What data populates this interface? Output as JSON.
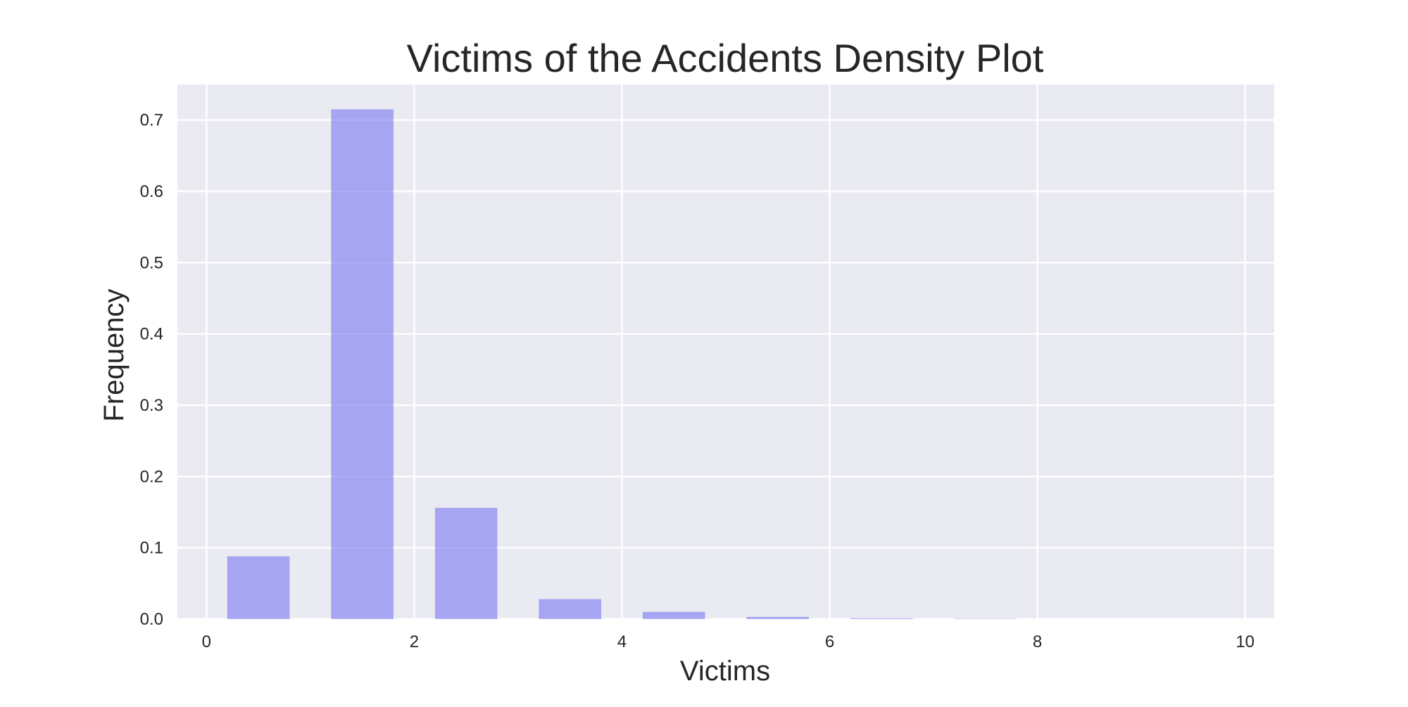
{
  "chart_data": {
    "type": "bar",
    "title": "Victims of the Accidents Density Plot",
    "xlabel": "Victims",
    "ylabel": "Frequency",
    "xlim": [
      -0.28,
      10.28
    ],
    "ylim": [
      0,
      0.75
    ],
    "xticks": [
      "0",
      "2",
      "4",
      "6",
      "8",
      "10"
    ],
    "xtick_values": [
      0,
      2,
      4,
      6,
      8,
      10
    ],
    "yticks": [
      "0.0",
      "0.1",
      "0.2",
      "0.3",
      "0.4",
      "0.5",
      "0.6",
      "0.7"
    ],
    "ytick_values": [
      0.0,
      0.1,
      0.2,
      0.3,
      0.4,
      0.5,
      0.6,
      0.7
    ],
    "grid": true,
    "bars": [
      {
        "x0": 0.2,
        "x1": 0.8,
        "value": 0.088
      },
      {
        "x0": 1.2,
        "x1": 1.8,
        "value": 0.715
      },
      {
        "x0": 2.2,
        "x1": 2.8,
        "value": 0.156
      },
      {
        "x0": 3.2,
        "x1": 3.8,
        "value": 0.028
      },
      {
        "x0": 4.2,
        "x1": 4.8,
        "value": 0.01
      },
      {
        "x0": 5.2,
        "x1": 5.8,
        "value": 0.003
      },
      {
        "x0": 6.2,
        "x1": 6.8,
        "value": 0.001
      },
      {
        "x0": 7.2,
        "x1": 7.8,
        "value": 0.0005
      }
    ],
    "colors": {
      "bar": "#7b7bf0",
      "plot_background": "#eaeaf2",
      "grid": "#ffffff",
      "text": "#262626"
    }
  }
}
